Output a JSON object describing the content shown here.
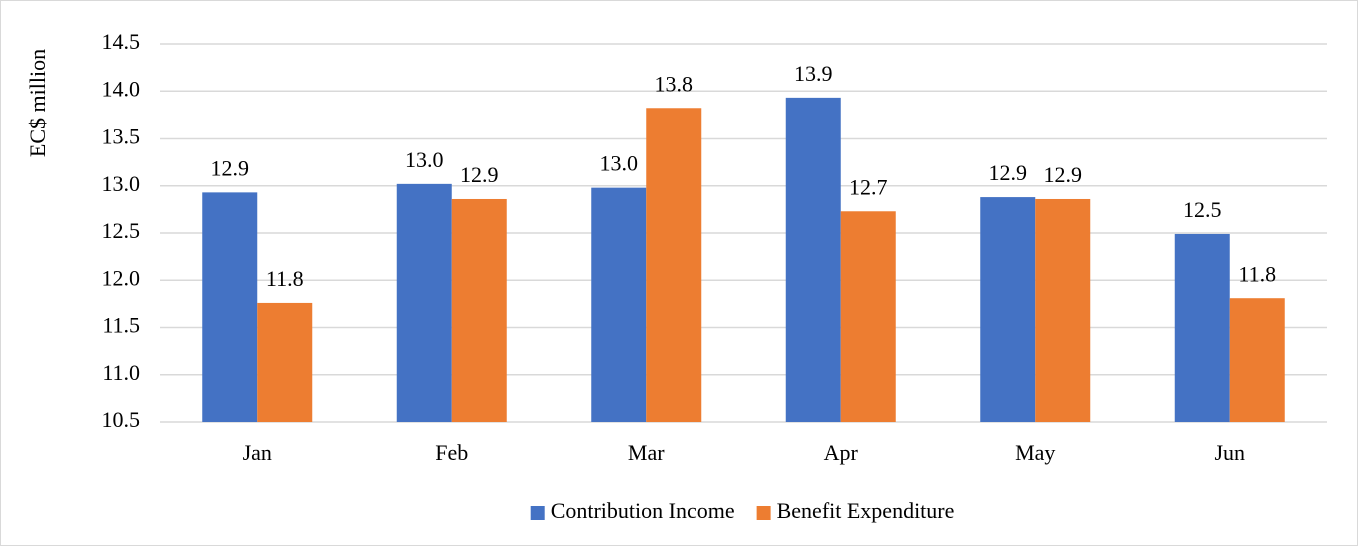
{
  "chart_data": {
    "type": "bar",
    "y_label": "EC$ million",
    "categories": [
      "Jan",
      "Feb",
      "Mar",
      "Apr",
      "May",
      "Jun"
    ],
    "series": [
      {
        "name": "Contribution Income",
        "color": "#4472c4",
        "values": [
          12.93,
          13.02,
          12.98,
          13.93,
          12.88,
          12.49
        ],
        "value_labels": [
          "12.9",
          "13.0",
          "13.0",
          "13.9",
          "12.9",
          "12.5"
        ]
      },
      {
        "name": "Benefit Expenditure",
        "color": "#ed7d31",
        "values": [
          11.76,
          12.86,
          13.82,
          12.73,
          12.86,
          11.81
        ],
        "value_labels": [
          "11.8",
          "12.9",
          "13.8",
          "12.7",
          "12.9",
          "11.8"
        ]
      }
    ],
    "ylim": [
      10.5,
      14.5
    ],
    "yticks": [
      10.5,
      {
        "value": 11,
        "label": "11.0"
      },
      11.5,
      {
        "value": 12,
        "label": "12.0"
      },
      12.5,
      {
        "value": 13,
        "label": "13.0"
      },
      13.5,
      {
        "value": 14,
        "label": "14.0"
      },
      14.5
    ],
    "grid": true,
    "legend": "bottom"
  }
}
